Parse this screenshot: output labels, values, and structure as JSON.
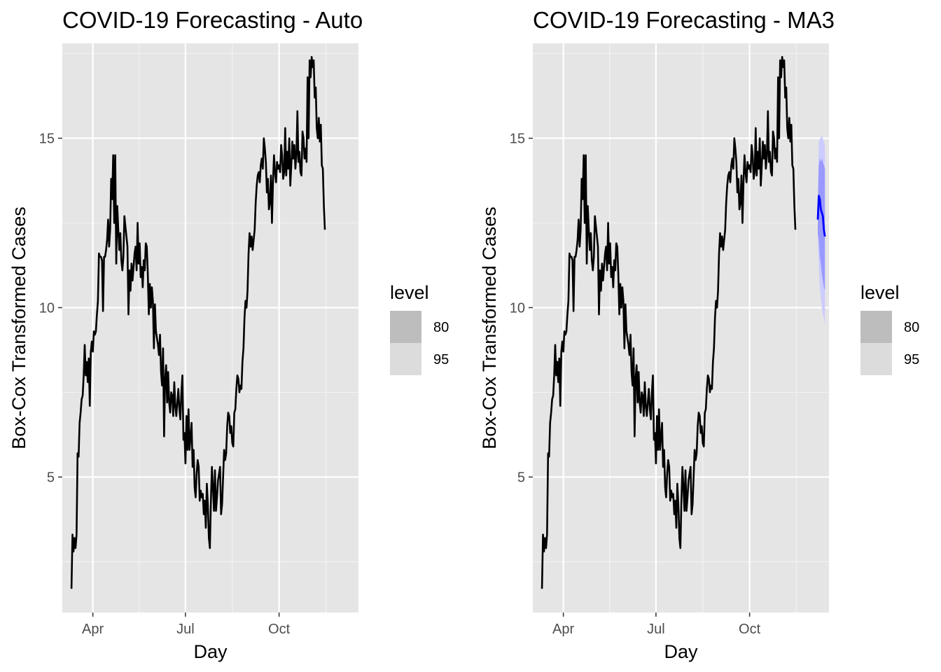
{
  "chart_data": [
    {
      "type": "line",
      "title": "COVID-19 Forecasting - Auto",
      "xlabel": "Day",
      "ylabel": "Box-Cox Transformed Cases",
      "x_ticks": [
        {
          "label": "Apr",
          "date": "2020-04-01"
        },
        {
          "label": "Jul",
          "date": "2020-07-01"
        },
        {
          "label": "Oct",
          "date": "2020-10-01"
        }
      ],
      "y_ticks": [
        5,
        10,
        15
      ],
      "ylim": [
        1.0,
        17.8
      ],
      "xlim": [
        "2020-03-02",
        "2020-12-18"
      ],
      "grid": true,
      "legend": {
        "title": "level",
        "entries": [
          "80",
          "95"
        ],
        "fills": [
          "#bdbdbd",
          "#dcdcdc"
        ]
      },
      "series": [
        {
          "color": "#000000",
          "x_start": "2020-03-11",
          "values": [
            1.7,
            3.3,
            2.8,
            3.2,
            2.9,
            3.3,
            5.7,
            5.6,
            6.6,
            6.9,
            7.3,
            7.4,
            8.0,
            8.9,
            8.0,
            8.4,
            7.8,
            8.5,
            7.1,
            8.7,
            9.0,
            8.7,
            9.3,
            9.2,
            9.3,
            9.8,
            10.2,
            11.6,
            11.5,
            11.5,
            11.4,
            9.9,
            11.5,
            11.5,
            11.7,
            12.0,
            12.6,
            11.8,
            12.3,
            13.8,
            13.2,
            14.5,
            12.5,
            14.5,
            11.3,
            13.0,
            12.3,
            11.7,
            12.2,
            11.4,
            11.1,
            11.5,
            12.7,
            12.4,
            12.1,
            11.8,
            9.8,
            11.1,
            10.5,
            11.3,
            10.8,
            11.2,
            11.6,
            11.8,
            11.1,
            12.5,
            11.3,
            11.9,
            10.9,
            11.2,
            10.6,
            11.4,
            11.1,
            11.9,
            11.8,
            11.0,
            9.8,
            10.7,
            10.0,
            10.6,
            10.2,
            8.8,
            10.1,
            9.3,
            9.1,
            8.9,
            8.6,
            9.2,
            8.1,
            7.7,
            8.8,
            6.2,
            7.9,
            8.3,
            7.2,
            8.1,
            7.2,
            6.9,
            7.5,
            7.4,
            6.8,
            7.8,
            7.1,
            6.8,
            7.2,
            7.6,
            7.0,
            6.7,
            7.5,
            8.0,
            6.1,
            6.3,
            5.4,
            6.8,
            5.8,
            7.0,
            5.8,
            6.2,
            6.6,
            5.3,
            5.8,
            4.7,
            4.4,
            5.1,
            5.5,
            5.3,
            4.3,
            4.6,
            4.4,
            4.5,
            3.9,
            4.3,
            3.5,
            4.8,
            4.2,
            3.2,
            2.9,
            4.3,
            5.3,
            4.7,
            4.0,
            5.2,
            4.0,
            4.4,
            4.9,
            5.1,
            5.3,
            3.9,
            4.2,
            5.0,
            5.8,
            5.5,
            5.7,
            6.5,
            6.9,
            6.8,
            6.3,
            6.5,
            6.0,
            5.9,
            6.9,
            7.0,
            7.6,
            8.0,
            7.9,
            7.5,
            7.7,
            7.6,
            8.4,
            8.8,
            9.7,
            10.2,
            10.0,
            10.5,
            11.6,
            12.2,
            11.8,
            12.1,
            11.7,
            12.0,
            12.3,
            13.1,
            13.6,
            13.9,
            14.0,
            13.7,
            14.2,
            14.4,
            14.1,
            15.0,
            14.7,
            14.3,
            13.4,
            13.8,
            12.9,
            13.1,
            13.9,
            12.5,
            13.7,
            14.5,
            14.0,
            13.7,
            14.3,
            14.1,
            14.2,
            14.0,
            14.8,
            14.5,
            13.8,
            14.0,
            15.3,
            13.9,
            14.6,
            14.1,
            15.0,
            13.6,
            14.2,
            14.9,
            14.4,
            14.8,
            14.1,
            14.5,
            15.8,
            14.3,
            14.6,
            14.0,
            13.9,
            15.2,
            15.0,
            14.4,
            14.7,
            14.3,
            16.8,
            15.0,
            17.3,
            16.8,
            17.4,
            17.1,
            17.3,
            16.2,
            16.5,
            15.3,
            15.0,
            15.6,
            14.9,
            15.4,
            14.2,
            14.1,
            13.0,
            12.3
          ]
        }
      ]
    },
    {
      "type": "line",
      "title": "COVID-19 Forecasting - MA3",
      "xlabel": "Day",
      "ylabel": "Box-Cox Transformed Cases",
      "x_ticks": [
        {
          "label": "Apr",
          "date": "2020-04-01"
        },
        {
          "label": "Jul",
          "date": "2020-07-01"
        },
        {
          "label": "Oct",
          "date": "2020-10-01"
        }
      ],
      "y_ticks": [
        5,
        10,
        15
      ],
      "ylim": [
        1.0,
        17.8
      ],
      "xlim": [
        "2020-03-02",
        "2020-12-18"
      ],
      "grid": true,
      "legend": {
        "title": "level",
        "entries": [
          "80",
          "95"
        ],
        "fills": [
          "#bdbdbd",
          "#dcdcdc"
        ]
      },
      "history_same_as_panel": 0,
      "forecast": {
        "color": "#0000ff",
        "band_95_color": "#ccccff",
        "band_80_color": "#9999ff",
        "x_start": "2020-12-07",
        "mean": [
          12.6,
          13.3,
          13.2,
          12.9,
          12.8,
          12.7,
          12.3,
          12.1
        ],
        "lo80": [
          12.2,
          12.0,
          11.5,
          11.3,
          11.0,
          10.8,
          10.6,
          10.5
        ],
        "hi80": [
          13.0,
          14.2,
          14.4,
          14.3,
          14.4,
          14.3,
          14.2,
          14.1
        ],
        "lo95": [
          12.0,
          11.2,
          10.6,
          10.3,
          10.0,
          9.8,
          9.7,
          9.5
        ],
        "hi95": [
          13.2,
          14.9,
          15.0,
          15.0,
          15.1,
          15.0,
          14.9,
          14.8
        ]
      }
    }
  ]
}
